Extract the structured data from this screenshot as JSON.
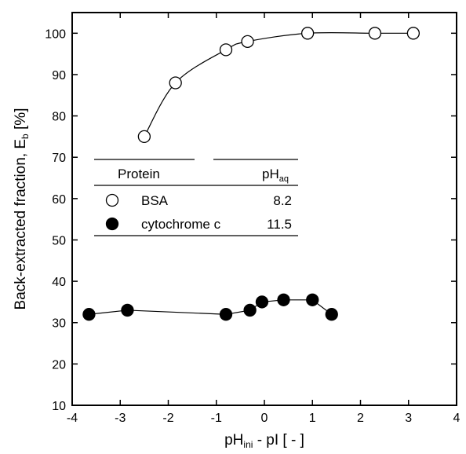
{
  "chart_data": {
    "type": "scatter",
    "xlabel": {
      "main": "pH",
      "sub": "ini",
      "rest": " - pI [ - ]"
    },
    "ylabel": {
      "main": "Back-extracted fraction, E",
      "sub": "b",
      "rest": " [%]"
    },
    "xlim": [
      -4,
      4
    ],
    "ylim": [
      10,
      105
    ],
    "xticks": [
      -4,
      -3,
      -2,
      -1,
      0,
      1,
      2,
      3,
      4
    ],
    "yticks": [
      10,
      20,
      30,
      40,
      50,
      60,
      70,
      80,
      90,
      100
    ],
    "grid": false,
    "legend": {
      "placement": "left-middle",
      "header_protein": "Protein",
      "header_ph": {
        "main": "pH",
        "sub": "aq"
      }
    },
    "series": [
      {
        "name": "BSA",
        "ph_aq": "8.2",
        "marker": "open-circle",
        "x": [
          -2.5,
          -1.85,
          -0.8,
          -0.35,
          0.9,
          2.3,
          3.1
        ],
        "y": [
          75,
          88,
          96,
          98,
          100,
          100,
          100
        ]
      },
      {
        "name": "cytochrome c",
        "ph_aq": "11.5",
        "marker": "filled-circle",
        "x": [
          -3.65,
          -2.85,
          -0.8,
          -0.3,
          -0.05,
          0.4,
          1.0,
          1.4
        ],
        "y": [
          32,
          33,
          32,
          33,
          35,
          35.5,
          35.5,
          32
        ]
      }
    ]
  }
}
